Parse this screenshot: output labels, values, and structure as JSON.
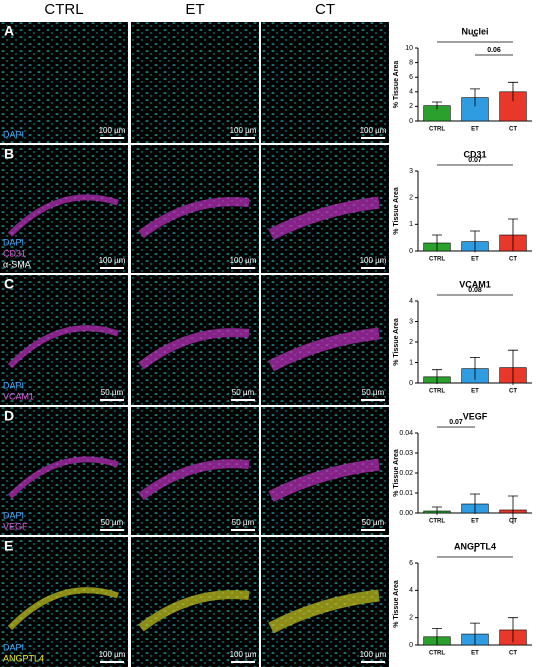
{
  "figure": {
    "columns": [
      "CTRL",
      "ET",
      "CT"
    ],
    "panels": [
      {
        "letter": "A",
        "stains": [
          {
            "text": "DAPI",
            "color": "#4aa8ff"
          }
        ],
        "scale": "100 µm"
      },
      {
        "letter": "B",
        "stains": [
          {
            "text": "DAPI",
            "color": "#4aa8ff"
          },
          {
            "text": "CD31",
            "color": "#e060e0"
          },
          {
            "text": "α-SMA",
            "color": "#ffffff"
          }
        ],
        "scale": "100 µm"
      },
      {
        "letter": "C",
        "stains": [
          {
            "text": "DAPI",
            "color": "#4aa8ff"
          },
          {
            "text": "VCAM1",
            "color": "#e060e0"
          }
        ],
        "scale": "50 µm"
      },
      {
        "letter": "D",
        "stains": [
          {
            "text": "DAPI",
            "color": "#4aa8ff"
          },
          {
            "text": "VEGF",
            "color": "#e060e0"
          }
        ],
        "scale": "50 µm"
      },
      {
        "letter": "E",
        "stains": [
          {
            "text": "DAPI",
            "color": "#4aa8ff"
          },
          {
            "text": "ANGPTL4",
            "color": "#f0f020"
          }
        ],
        "scale": "100 µm"
      }
    ]
  },
  "chart_data": [
    {
      "type": "bar",
      "title": "Nuclei",
      "y_label": "% Tissue Area",
      "categories": [
        "CTRL",
        "ET",
        "CT"
      ],
      "colors": [
        "#2ca02c",
        "#2f9be0",
        "#e8382a"
      ],
      "values": [
        2.1,
        3.2,
        4.0
      ],
      "errors": [
        0.5,
        1.2,
        1.3
      ],
      "ylim": [
        0,
        10
      ],
      "yticks": [
        0,
        2,
        4,
        6,
        8,
        10
      ],
      "annotations": [
        {
          "text": "**",
          "between": [
            "CTRL",
            "CT"
          ]
        },
        {
          "text": "0.06",
          "between": [
            "ET",
            "CT"
          ]
        }
      ]
    },
    {
      "type": "bar",
      "title": "CD31",
      "y_label": "% Tissue Area",
      "categories": [
        "CTRL",
        "ET",
        "CT"
      ],
      "colors": [
        "#2ca02c",
        "#2f9be0",
        "#e8382a"
      ],
      "values": [
        0.3,
        0.35,
        0.6
      ],
      "errors": [
        0.3,
        0.4,
        0.6
      ],
      "ylim": [
        0,
        3
      ],
      "yticks": [
        0,
        1,
        2,
        3
      ],
      "annotations": [
        {
          "text": "0.07",
          "between": [
            "CTRL",
            "CT"
          ]
        }
      ]
    },
    {
      "type": "bar",
      "title": "VCAM1",
      "y_label": "% Tissue Area",
      "categories": [
        "CTRL",
        "ET",
        "CT"
      ],
      "colors": [
        "#2ca02c",
        "#2f9be0",
        "#e8382a"
      ],
      "values": [
        0.3,
        0.7,
        0.75
      ],
      "errors": [
        0.35,
        0.55,
        0.85
      ],
      "ylim": [
        0,
        4
      ],
      "yticks": [
        0,
        1,
        2,
        3,
        4
      ],
      "annotations": [
        {
          "text": "0.08",
          "between": [
            "CTRL",
            "CT"
          ]
        }
      ]
    },
    {
      "type": "bar",
      "title": "VEGF",
      "y_label": "% Tissue Area",
      "categories": [
        "CTRL",
        "ET",
        "CT"
      ],
      "colors": [
        "#2ca02c",
        "#2f9be0",
        "#e8382a"
      ],
      "values": [
        0.001,
        0.0045,
        0.0015
      ],
      "errors": [
        0.002,
        0.005,
        0.007
      ],
      "ylim": [
        0,
        0.04
      ],
      "yticks": [
        {
          "value": 0,
          "label": "0.00"
        },
        0.01,
        0.02,
        0.03,
        0.04
      ],
      "annotations": [
        {
          "text": "0.07",
          "between": [
            "CTRL",
            "ET"
          ]
        }
      ]
    },
    {
      "type": "bar",
      "title": "ANGPTL4",
      "y_label": "% Tissue Area",
      "categories": [
        "CTRL",
        "ET",
        "CT"
      ],
      "colors": [
        "#2ca02c",
        "#2f9be0",
        "#e8382a"
      ],
      "values": [
        0.6,
        0.8,
        1.1
      ],
      "errors": [
        0.6,
        0.8,
        0.9
      ],
      "ylim": [
        0,
        6
      ],
      "yticks": [
        0,
        2,
        4,
        6
      ],
      "annotations": [
        {
          "text": "*",
          "between": [
            "CTRL",
            "CT"
          ]
        }
      ]
    }
  ]
}
